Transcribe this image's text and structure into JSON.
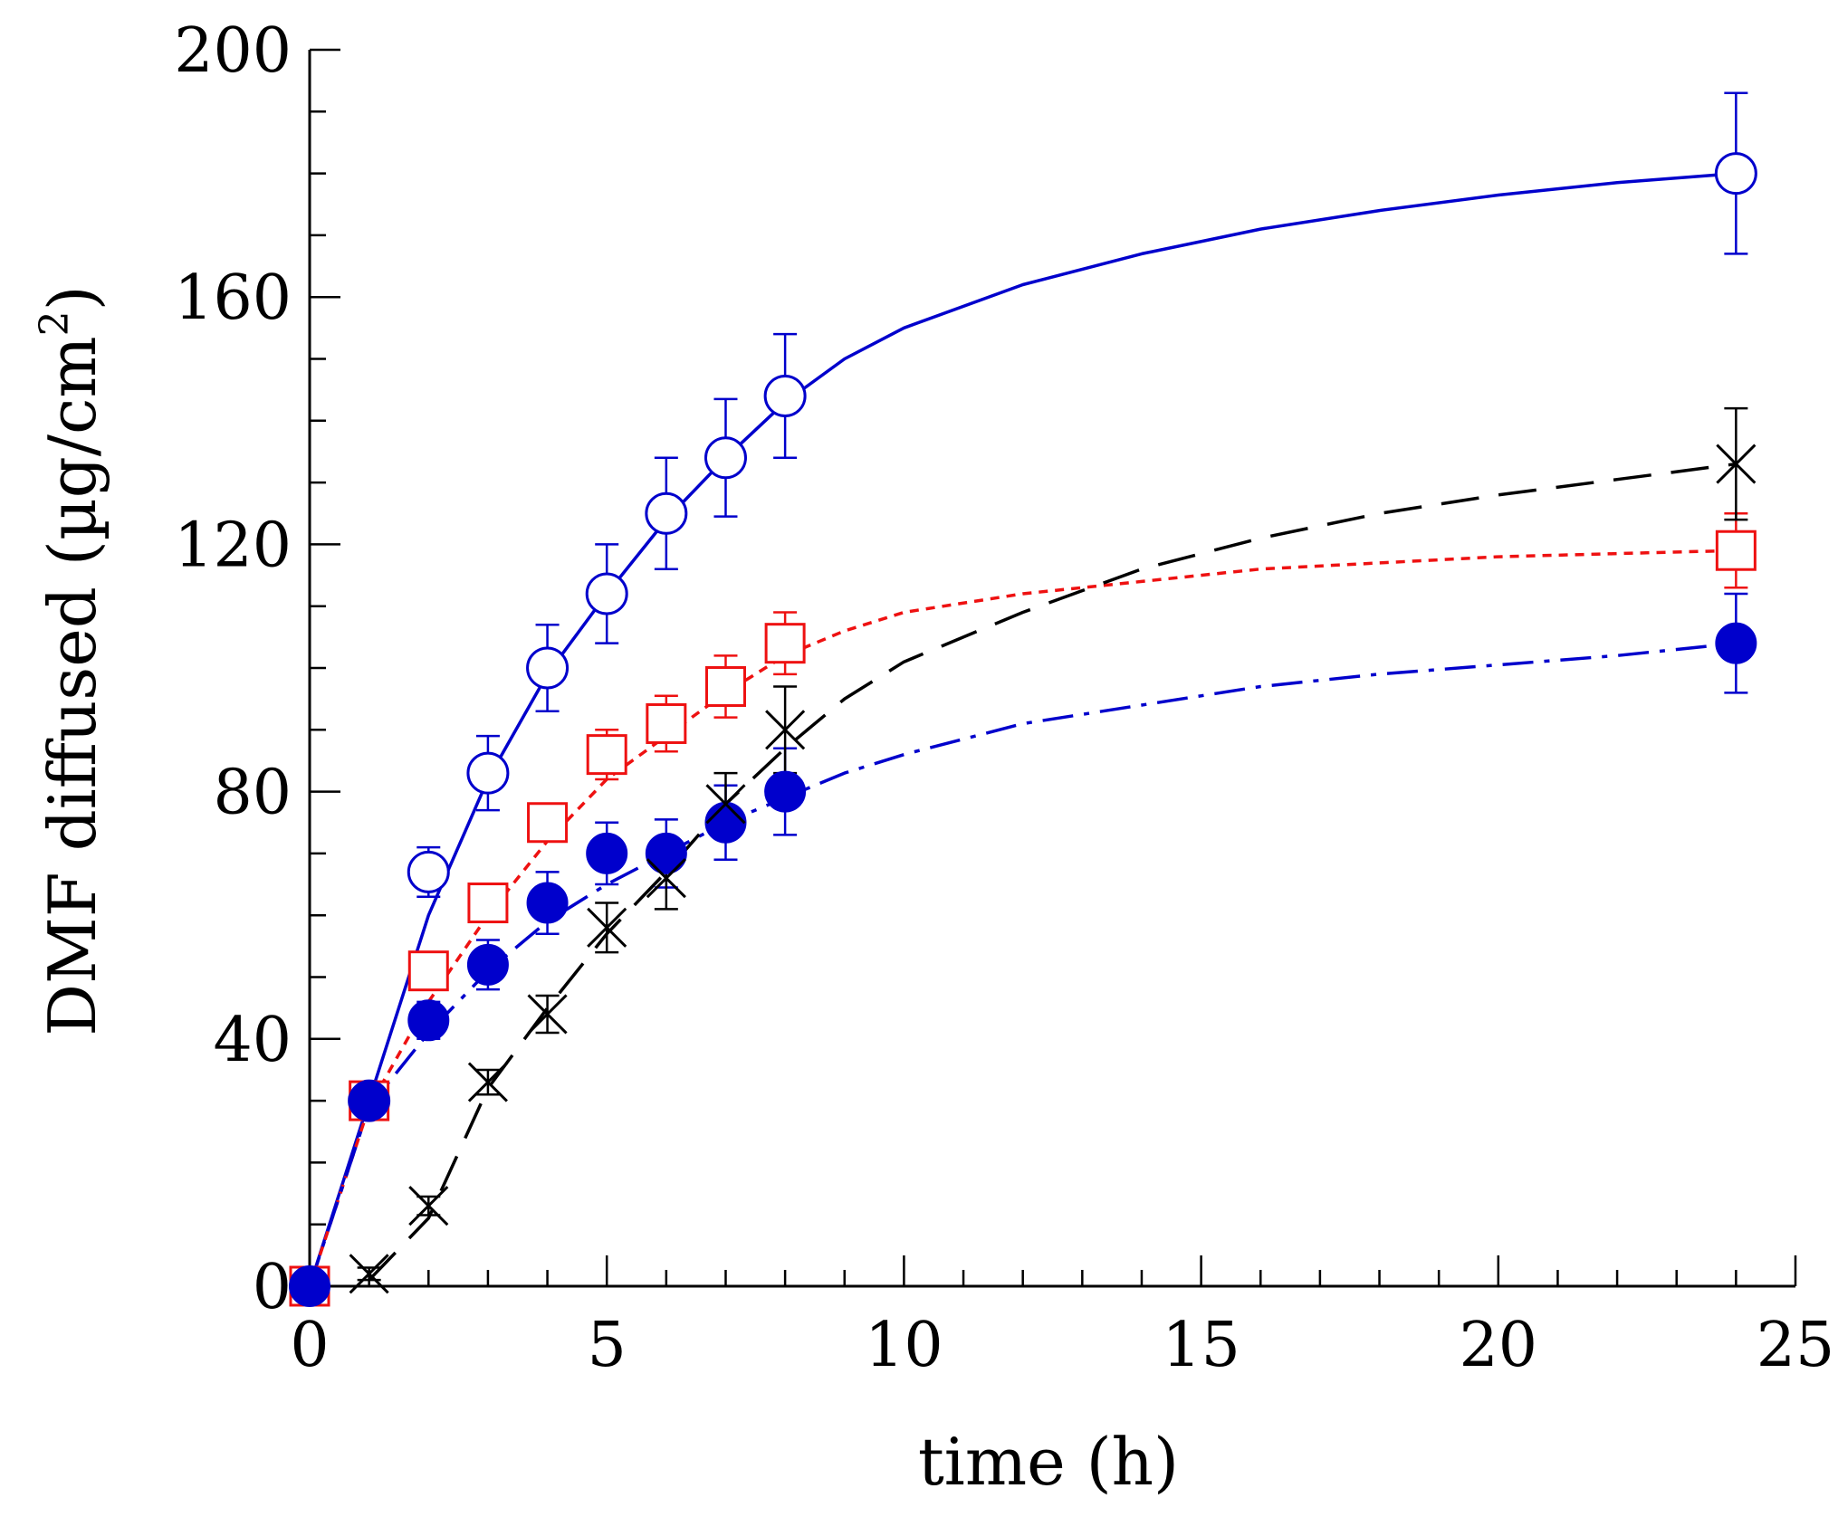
{
  "chart_data": {
    "type": "scatter",
    "title": "",
    "xlabel": "time (h)",
    "ylabel_main": "DMF diffused (µg/cm",
    "ylabel_sup": "2",
    "ylabel_close": ")",
    "xlim": [
      0,
      25
    ],
    "ylim": [
      0,
      200
    ],
    "xticks": [
      0,
      5,
      10,
      15,
      20,
      25
    ],
    "yticks": [
      0,
      40,
      80,
      120,
      160,
      200
    ],
    "x_minor_step": 1,
    "y_minor_step": 10,
    "grid": false,
    "legend": "none",
    "series": [
      {
        "name": "open-circle",
        "marker": "open-circle",
        "color": "#0000cc",
        "line": "solid",
        "x": [
          1,
          2,
          3,
          4,
          5,
          6,
          7,
          8,
          24
        ],
        "y": [
          30,
          67,
          83,
          100,
          112,
          125,
          134,
          144,
          180
        ],
        "err": [
          2,
          4,
          6,
          7,
          8,
          9,
          9.5,
          10,
          13
        ],
        "fit": [
          [
            0,
            0
          ],
          [
            1,
            30
          ],
          [
            2,
            60
          ],
          [
            3,
            82
          ],
          [
            4,
            99
          ],
          [
            5,
            112
          ],
          [
            6,
            124
          ],
          [
            7,
            134
          ],
          [
            8,
            143
          ],
          [
            9,
            150
          ],
          [
            10,
            155
          ],
          [
            12,
            162
          ],
          [
            14,
            167
          ],
          [
            16,
            171
          ],
          [
            18,
            174
          ],
          [
            20,
            176.5
          ],
          [
            22,
            178.5
          ],
          [
            24,
            180
          ]
        ]
      },
      {
        "name": "open-square",
        "marker": "open-square",
        "color": "#ee1111",
        "line": "dotted",
        "x": [
          0,
          1,
          2,
          3,
          4,
          5,
          6,
          7,
          8,
          24
        ],
        "y": [
          0,
          30,
          51,
          62,
          75,
          86,
          91,
          97,
          104,
          119
        ],
        "err": [
          0,
          2,
          3,
          3,
          3,
          4,
          4.5,
          5,
          5,
          6
        ],
        "fit": [
          [
            0,
            0
          ],
          [
            1,
            29
          ],
          [
            2,
            46
          ],
          [
            3,
            60
          ],
          [
            4,
            72
          ],
          [
            5,
            82
          ],
          [
            6,
            89
          ],
          [
            7,
            96
          ],
          [
            8,
            102
          ],
          [
            9,
            106
          ],
          [
            10,
            109
          ],
          [
            12,
            112
          ],
          [
            14,
            114
          ],
          [
            16,
            116
          ],
          [
            18,
            117
          ],
          [
            20,
            118
          ],
          [
            22,
            118.5
          ],
          [
            24,
            119
          ]
        ]
      },
      {
        "name": "filled-circle",
        "marker": "filled-circle",
        "color": "#0000cc",
        "line": "dash-dot",
        "x": [
          0,
          1,
          2,
          3,
          4,
          5,
          6,
          7,
          8,
          24
        ],
        "y": [
          0,
          30,
          43,
          52,
          62,
          70,
          70,
          75,
          80,
          104
        ],
        "err": [
          0,
          2,
          3,
          4,
          5,
          5,
          5.5,
          6,
          7,
          8
        ],
        "fit": [
          [
            0,
            0
          ],
          [
            1,
            29
          ],
          [
            2,
            41
          ],
          [
            3,
            51
          ],
          [
            4,
            59
          ],
          [
            5,
            65
          ],
          [
            6,
            70
          ],
          [
            7,
            75
          ],
          [
            8,
            79
          ],
          [
            9,
            83
          ],
          [
            10,
            86
          ],
          [
            12,
            91
          ],
          [
            14,
            94
          ],
          [
            16,
            97
          ],
          [
            18,
            99
          ],
          [
            20,
            100.5
          ],
          [
            22,
            102
          ],
          [
            24,
            104
          ]
        ]
      },
      {
        "name": "cross",
        "marker": "cross",
        "color": "#000000",
        "line": "long-dash",
        "x": [
          1,
          2,
          3,
          4,
          5,
          6,
          7,
          8,
          24
        ],
        "y": [
          2,
          13,
          33,
          44,
          58,
          66,
          78,
          90,
          133
        ],
        "err": [
          1,
          1.5,
          2,
          3,
          4,
          5,
          5,
          7,
          9
        ],
        "fit": [
          [
            1,
            1
          ],
          [
            2,
            11
          ],
          [
            3,
            32
          ],
          [
            4,
            45
          ],
          [
            5,
            57
          ],
          [
            6,
            67
          ],
          [
            7,
            78
          ],
          [
            8,
            87
          ],
          [
            9,
            95
          ],
          [
            10,
            101
          ],
          [
            12,
            109
          ],
          [
            14,
            116
          ],
          [
            16,
            121
          ],
          [
            18,
            125
          ],
          [
            20,
            128
          ],
          [
            22,
            130.5
          ],
          [
            24,
            133
          ]
        ]
      }
    ]
  }
}
